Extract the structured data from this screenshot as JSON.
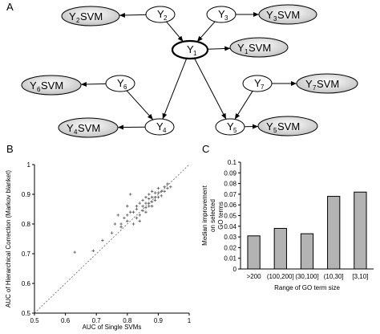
{
  "panels": {
    "a": "A",
    "b": "B",
    "c": "C"
  },
  "network": {
    "nodes": [
      {
        "id": "Y2",
        "main": "Y",
        "sub": "2"
      },
      {
        "id": "Y3",
        "main": "Y",
        "sub": "3"
      },
      {
        "id": "Y1",
        "main": "Y",
        "sub": "1"
      },
      {
        "id": "Y6",
        "main": "Y",
        "sub": "6"
      },
      {
        "id": "Y7",
        "main": "Y",
        "sub": "7"
      },
      {
        "id": "Y4",
        "main": "Y",
        "sub": "4"
      },
      {
        "id": "Y5",
        "main": "Y",
        "sub": "5"
      }
    ],
    "svm_nodes": [
      {
        "id": "Y2SVM",
        "main": "Y",
        "sub": "2",
        "suffix": " SVM"
      },
      {
        "id": "Y3SVM",
        "main": "Y",
        "sub": "3",
        "suffix": " SVM"
      },
      {
        "id": "Y1SVM",
        "main": "Y",
        "sub": "1",
        "suffix": " SVM"
      },
      {
        "id": "Y6SVM",
        "main": "Y",
        "sub": "6",
        "suffix": " SVM"
      },
      {
        "id": "Y7SVM",
        "main": "Y",
        "sub": "7",
        "suffix": " SVM"
      },
      {
        "id": "Y4SVM",
        "main": "Y",
        "sub": "4",
        "suffix": " SVM"
      },
      {
        "id": "Y5SVM",
        "main": "Y",
        "sub": "5",
        "suffix": " SVM"
      }
    ],
    "edges": [
      [
        "Y2",
        "Y2SVM"
      ],
      [
        "Y3",
        "Y3SVM"
      ],
      [
        "Y1",
        "Y1SVM"
      ],
      [
        "Y6",
        "Y6SVM"
      ],
      [
        "Y7",
        "Y7SVM"
      ],
      [
        "Y4",
        "Y4SVM"
      ],
      [
        "Y5",
        "Y5SVM"
      ],
      [
        "Y2",
        "Y1"
      ],
      [
        "Y3",
        "Y1"
      ],
      [
        "Y1",
        "Y4"
      ],
      [
        "Y1",
        "Y5"
      ],
      [
        "Y6",
        "Y4"
      ],
      [
        "Y7",
        "Y5"
      ]
    ]
  },
  "chart_data": [
    {
      "type": "scatter",
      "xlabel": "AUC of Single SVMs",
      "ylabel": "AUC of Hierarchical Correction (Markov blanket)",
      "xlim": [
        0.5,
        1
      ],
      "ylim": [
        0.5,
        1
      ],
      "xticks": [
        "0.5",
        "0.6",
        "0.7",
        "0.8",
        "0.9",
        "1"
      ],
      "yticks": [
        "0.5",
        "0.6",
        "0.7",
        "0.8",
        "0.9",
        "1"
      ],
      "diagonal": true,
      "points": [
        [
          0.63,
          0.705
        ],
        [
          0.69,
          0.71
        ],
        [
          0.72,
          0.745
        ],
        [
          0.75,
          0.77
        ],
        [
          0.76,
          0.8
        ],
        [
          0.77,
          0.83
        ],
        [
          0.78,
          0.79
        ],
        [
          0.79,
          0.82
        ],
        [
          0.8,
          0.86
        ],
        [
          0.8,
          0.81
        ],
        [
          0.81,
          0.9
        ],
        [
          0.81,
          0.84
        ],
        [
          0.82,
          0.84
        ],
        [
          0.82,
          0.8
        ],
        [
          0.83,
          0.86
        ],
        [
          0.83,
          0.85
        ],
        [
          0.84,
          0.87
        ],
        [
          0.84,
          0.83
        ],
        [
          0.85,
          0.88
        ],
        [
          0.85,
          0.86
        ],
        [
          0.85,
          0.845
        ],
        [
          0.86,
          0.89
        ],
        [
          0.86,
          0.87
        ],
        [
          0.86,
          0.855
        ],
        [
          0.87,
          0.9
        ],
        [
          0.87,
          0.885
        ],
        [
          0.87,
          0.87
        ],
        [
          0.87,
          0.86
        ],
        [
          0.88,
          0.91
        ],
        [
          0.88,
          0.89
        ],
        [
          0.88,
          0.875
        ],
        [
          0.88,
          0.86
        ],
        [
          0.89,
          0.905
        ],
        [
          0.89,
          0.89
        ],
        [
          0.89,
          0.88
        ],
        [
          0.9,
          0.92
        ],
        [
          0.9,
          0.905
        ],
        [
          0.9,
          0.89
        ],
        [
          0.91,
          0.91
        ],
        [
          0.91,
          0.895
        ],
        [
          0.92,
          0.925
        ],
        [
          0.92,
          0.91
        ],
        [
          0.93,
          0.935
        ],
        [
          0.93,
          0.92
        ],
        [
          0.94,
          0.925
        ],
        [
          0.84,
          0.81
        ],
        [
          0.86,
          0.84
        ],
        [
          0.83,
          0.82
        ],
        [
          0.78,
          0.8
        ],
        [
          0.8,
          0.83
        ]
      ]
    },
    {
      "type": "bar",
      "xlabel": "Range of GO term size",
      "ylabel": "Median improvement on selected GO terms",
      "ylim": [
        0,
        0.1
      ],
      "yticks": [
        "0",
        "0.01",
        "0.02",
        "0.03",
        "0.04",
        "0.05",
        "0.06",
        "0.07",
        "0.08",
        "0.09",
        "0.1"
      ],
      "categories": [
        ">200",
        "(100,200]",
        "(30,100]",
        "(10,30]",
        "[3,10]"
      ],
      "values": [
        0.031,
        0.038,
        0.033,
        0.068,
        0.072
      ],
      "bar_color": "#b3b3b3"
    }
  ]
}
